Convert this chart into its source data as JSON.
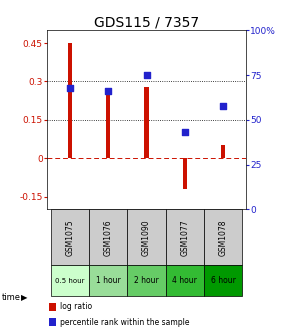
{
  "title": "GDS115 / 7357",
  "samples": [
    "GSM1075",
    "GSM1076",
    "GSM1090",
    "GSM1077",
    "GSM1078"
  ],
  "time_labels": [
    "0.5 hour",
    "1 hour",
    "2 hour",
    "4 hour",
    "6 hour"
  ],
  "time_colors": [
    "#ccffcc",
    "#99dd99",
    "#66cc66",
    "#33bb33",
    "#009900"
  ],
  "log_ratios": [
    0.45,
    0.25,
    0.28,
    -0.12,
    0.05
  ],
  "percentile_ranks": [
    68,
    66,
    75,
    43,
    58
  ],
  "bar_color": "#cc1100",
  "dot_color": "#2222cc",
  "ylim_left": [
    -0.2,
    0.5
  ],
  "ylim_right": [
    0,
    100
  ],
  "yticks_left": [
    -0.15,
    0.0,
    0.15,
    0.3,
    0.45
  ],
  "yticks_right": [
    0,
    25,
    50,
    75,
    100
  ],
  "zero_line_color": "#cc1100",
  "bar_width": 0.12,
  "dot_size": 20,
  "title_fontsize": 10,
  "tick_fontsize": 6.5,
  "sample_bg_color": "#cccccc",
  "legend_red_label": "log ratio",
  "legend_blue_label": "percentile rank within the sample"
}
